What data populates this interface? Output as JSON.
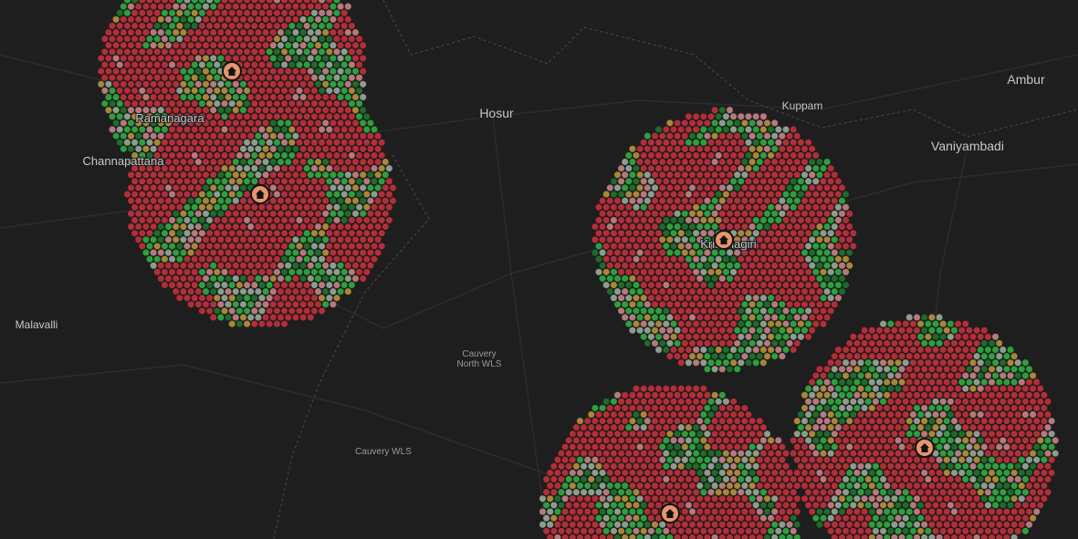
{
  "map": {
    "places": [
      "Hosur",
      "Kuppam",
      "Ambur",
      "Vaniyambadi",
      "Ramanagara",
      "Channapattana",
      "Krishnagiri",
      "Malavalli",
      "Cauvery",
      "North WLS",
      "Cauvery WLS"
    ]
  }
}
